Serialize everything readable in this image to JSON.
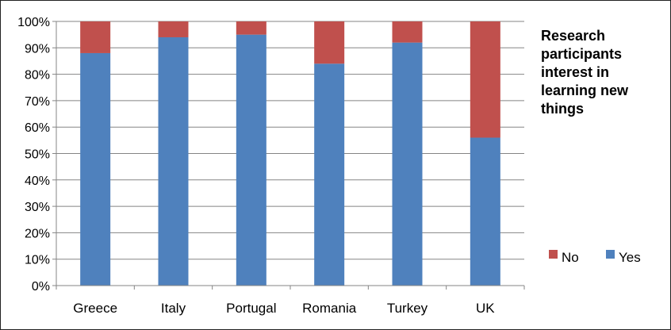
{
  "chart_data": {
    "type": "bar",
    "stacked": true,
    "title_lines": [
      "Research",
      "participants",
      "interest in",
      "learning new",
      "things"
    ],
    "categories": [
      "Greece",
      "Italy",
      "Portugal",
      "Romania",
      "Turkey",
      "UK"
    ],
    "series": [
      {
        "name": "Yes",
        "values": [
          88,
          94,
          95,
          84,
          92,
          56
        ],
        "color": "#4F81BD"
      },
      {
        "name": "No",
        "values": [
          12,
          6,
          5,
          16,
          8,
          44
        ],
        "color": "#C0504D"
      }
    ],
    "yticks": [
      "0%",
      "10%",
      "20%",
      "30%",
      "40%",
      "50%",
      "60%",
      "70%",
      "80%",
      "90%",
      "100%"
    ],
    "ylim": [
      0,
      100
    ],
    "grid": true,
    "legend": [
      {
        "name": "No",
        "color": "#C0504D"
      },
      {
        "name": "Yes",
        "color": "#4F81BD"
      }
    ],
    "legend_position": "right"
  }
}
